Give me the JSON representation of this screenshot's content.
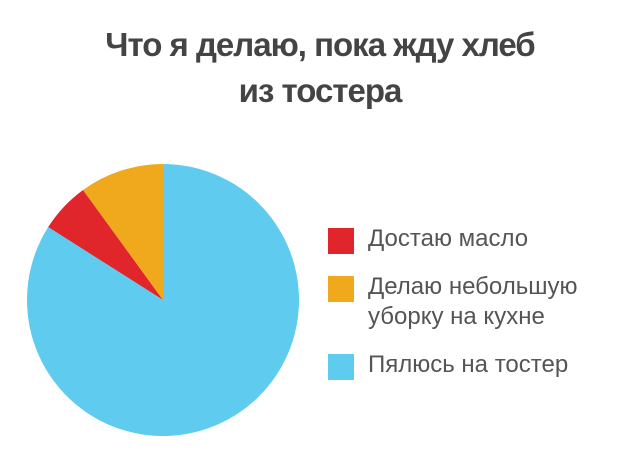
{
  "chart_data": {
    "type": "pie",
    "title": "Что я делаю, пока жду хлеб из тостера",
    "categories": [
      "Достаю масло",
      "Делаю небольшую уборку на кухне",
      "Пялюсь на тостер"
    ],
    "values": [
      6,
      10,
      84
    ],
    "colors": [
      "#e0252b",
      "#f0a91c",
      "#5ecbef"
    ],
    "legend": "right"
  }
}
